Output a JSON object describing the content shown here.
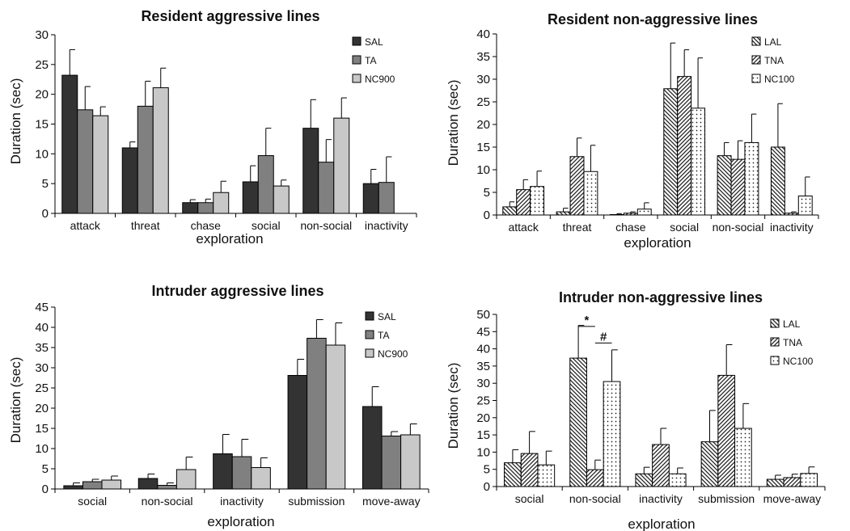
{
  "chart_data": [
    {
      "type": "bar",
      "title": "Resident aggressive lines",
      "xlabel": "exploration",
      "ylabel": "Duration (sec)",
      "ylim": [
        0,
        30
      ],
      "yticks": [
        0,
        5,
        10,
        15,
        20,
        25,
        30
      ],
      "categories": [
        "attack",
        "threat",
        "chase",
        "social",
        "non-social",
        "inactivity"
      ],
      "legend": "top-right",
      "grid": false,
      "series": [
        {
          "name": "SAL",
          "color": "#333333",
          "pattern": "solid",
          "values": [
            23.2,
            11,
            1.8,
            5.3,
            14.3,
            5
          ],
          "errors": [
            4.3,
            1,
            0.5,
            2.7,
            4.8,
            2.4
          ]
        },
        {
          "name": "TA",
          "color": "#808080",
          "pattern": "solid",
          "values": [
            17.4,
            18,
            1.8,
            9.7,
            8.6,
            5.2
          ],
          "errors": [
            3.9,
            4.2,
            0.6,
            4.6,
            3.8,
            4.3
          ]
        },
        {
          "name": "NC900",
          "color": "#c8c8c8",
          "pattern": "solid",
          "values": [
            16.4,
            21.1,
            3.5,
            4.6,
            16,
            null
          ],
          "errors": [
            1.5,
            3.3,
            1.9,
            1,
            3.4,
            null
          ]
        }
      ],
      "annotations": []
    },
    {
      "type": "bar",
      "title": "Resident non-aggressive lines",
      "xlabel": "exploration",
      "ylabel": "Duration (sec)",
      "ylim": [
        0,
        40
      ],
      "yticks": [
        0,
        5,
        10,
        15,
        20,
        25,
        30,
        35,
        40
      ],
      "categories": [
        "attack",
        "threat",
        "chase",
        "social",
        "non-social",
        "inactivity"
      ],
      "legend": "top-right",
      "grid": false,
      "series": [
        {
          "name": "LAL",
          "color": "#ffffff",
          "pattern": "back-diagonal",
          "values": [
            1.8,
            0.7,
            0.1,
            27.9,
            13.1,
            15
          ],
          "errors": [
            1.1,
            0.8,
            0.2,
            10.1,
            2.9,
            9.6
          ]
        },
        {
          "name": "TNA",
          "color": "#ffffff",
          "pattern": "diagonal",
          "values": [
            5.6,
            12.9,
            0.4,
            30.6,
            12.3,
            0.4
          ],
          "errors": [
            2.2,
            4.1,
            0.3,
            5.9,
            4.1,
            0.3
          ]
        },
        {
          "name": "NC100",
          "color": "#ffffff",
          "pattern": "dots",
          "values": [
            6.3,
            9.6,
            1.3,
            23.6,
            16,
            4.2
          ],
          "errors": [
            3.4,
            5.8,
            1.4,
            11.1,
            6.3,
            4.2
          ]
        }
      ],
      "annotations": []
    },
    {
      "type": "bar",
      "title": "Intruder aggressive lines",
      "xlabel": "exploration",
      "ylabel": "Duration (sec)",
      "ylim": [
        0,
        45
      ],
      "yticks": [
        0,
        5,
        10,
        15,
        20,
        25,
        30,
        35,
        40,
        45
      ],
      "categories": [
        "social",
        "non-social",
        "inactivity",
        "submission",
        "move-away"
      ],
      "legend": "top-right",
      "grid": false,
      "series": [
        {
          "name": "SAL",
          "color": "#333333",
          "pattern": "solid",
          "values": [
            0.8,
            2.6,
            8.7,
            28.1,
            20.4
          ],
          "errors": [
            0.7,
            1.1,
            4.8,
            4,
            4.9
          ]
        },
        {
          "name": "TA",
          "color": "#808080",
          "pattern": "solid",
          "values": [
            1.8,
            0.9,
            8,
            37.3,
            13.1
          ],
          "errors": [
            0.6,
            0.6,
            4.3,
            4.6,
            1.1
          ]
        },
        {
          "name": "NC900",
          "color": "#c8c8c8",
          "pattern": "solid",
          "values": [
            2.2,
            4.8,
            5.3,
            35.6,
            13.4
          ],
          "errors": [
            1,
            3.1,
            2.4,
            5.5,
            2.7
          ]
        }
      ],
      "annotations": []
    },
    {
      "type": "bar",
      "title": "Intruder non-aggressive lines",
      "xlabel": "exploration",
      "ylabel": "Duration (sec)",
      "ylim": [
        0,
        50
      ],
      "yticks": [
        0,
        5,
        10,
        15,
        20,
        25,
        30,
        35,
        40,
        45,
        50
      ],
      "categories": [
        "social",
        "non-social",
        "inactivity",
        "submission",
        "move-away"
      ],
      "legend": "top-right",
      "grid": false,
      "series": [
        {
          "name": "LAL",
          "color": "#ffffff",
          "pattern": "back-diagonal",
          "values": [
            6.9,
            37.3,
            3.7,
            13,
            2.1
          ],
          "errors": [
            3.8,
            9.5,
            1.9,
            9.1,
            1.2
          ]
        },
        {
          "name": "TNA",
          "color": "#ffffff",
          "pattern": "diagonal",
          "values": [
            9.6,
            4.9,
            12.2,
            32.3,
            2.6
          ],
          "errors": [
            6.4,
            2.8,
            4.7,
            8.9,
            1
          ]
        },
        {
          "name": "NC100",
          "color": "#ffffff",
          "pattern": "dots",
          "values": [
            6.3,
            30.5,
            3.7,
            16.9,
            3.8
          ],
          "errors": [
            4,
            9.2,
            1.7,
            7.2,
            1.9
          ]
        }
      ],
      "annotations": [
        {
          "text": "*",
          "category_index": 1,
          "from_series": 0,
          "to_series": 1,
          "y": 46.5
        },
        {
          "text": "#",
          "category_index": 1,
          "from_series": 1,
          "to_series": 2,
          "y": 41.7
        }
      ]
    }
  ]
}
